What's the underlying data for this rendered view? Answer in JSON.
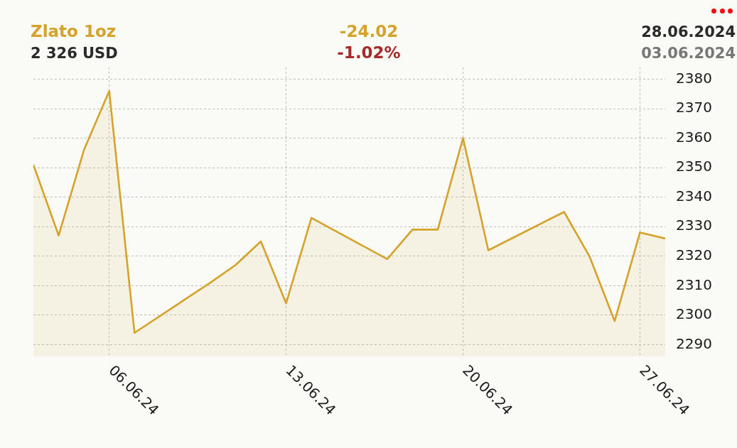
{
  "chart_data": {
    "type": "area",
    "title": "Zlato 1oz",
    "subtitle": "2 326 USD",
    "annotations": [
      "-24.02",
      "-1.02%",
      "28.06.2024",
      "03.06.2024"
    ],
    "x": [
      "2024-06-03",
      "2024-06-04",
      "2024-06-05",
      "2024-06-06",
      "2024-06-07",
      "2024-06-10",
      "2024-06-11",
      "2024-06-12",
      "2024-06-13",
      "2024-06-14",
      "2024-06-17",
      "2024-06-18",
      "2024-06-19",
      "2024-06-20",
      "2024-06-21",
      "2024-06-24",
      "2024-06-25",
      "2024-06-26",
      "2024-06-27",
      "2024-06-28"
    ],
    "values": [
      2351,
      2327,
      2356,
      2376,
      2294,
      2311,
      2317,
      2325,
      2304,
      2333,
      2319,
      2329,
      2329,
      2360,
      2322,
      2335,
      2320,
      2298,
      2328,
      2326
    ],
    "color": "#d5a22b",
    "xlim": [
      "2024-06-03",
      "2024-06-28"
    ],
    "xticks": [
      {
        "value": "2024-06-06",
        "label": "06.06.24"
      },
      {
        "value": "2024-06-13",
        "label": "13.06.24"
      },
      {
        "value": "2024-06-20",
        "label": "20.06.24"
      },
      {
        "value": "2024-06-27",
        "label": "27.06.24"
      }
    ],
    "ylim": [
      2286,
      2384
    ],
    "yticks": [
      2290,
      2300,
      2310,
      2320,
      2330,
      2340,
      2350,
      2360,
      2370,
      2380
    ],
    "grid": true,
    "marker": "none"
  }
}
